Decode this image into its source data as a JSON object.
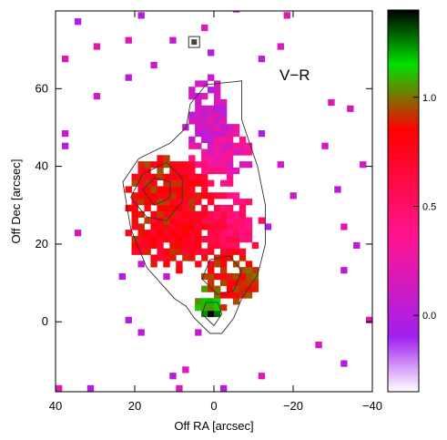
{
  "chart_data": {
    "type": "heatmap",
    "title": "",
    "panel_label": "V−R",
    "xlabel": "Off RA [arcsec]",
    "ylabel": "Off Dec [arcsec]",
    "xlim": [
      40,
      -40
    ],
    "ylim": [
      -18,
      80
    ],
    "xticks": [
      {
        "value": 40,
        "label": "40"
      },
      {
        "value": 20,
        "label": "20"
      },
      {
        "value": 0,
        "label": "0"
      },
      {
        "value": -20,
        "label": "−20"
      },
      {
        "value": -40,
        "label": "−40"
      }
    ],
    "yticks": [
      {
        "value": 0,
        "label": "0"
      },
      {
        "value": 20,
        "label": "20"
      },
      {
        "value": 40,
        "label": "40"
      },
      {
        "value": 60,
        "label": "60"
      }
    ],
    "colorbar": {
      "range": [
        -0.35,
        1.4
      ],
      "ticks": [
        {
          "value": 0.0,
          "label": "0.0"
        },
        {
          "value": 0.5,
          "label": "0.5"
        },
        {
          "value": 1.0,
          "label": "1.0"
        }
      ],
      "stops": [
        {
          "value": -0.35,
          "color": "#ffffff"
        },
        {
          "value": -0.1,
          "color": "#a020f0"
        },
        {
          "value": 0.35,
          "color": "#ff1493"
        },
        {
          "value": 0.85,
          "color": "#ff0000"
        },
        {
          "value": 1.15,
          "color": "#00e000"
        },
        {
          "value": 1.4,
          "color": "#000000"
        }
      ]
    },
    "regions": [
      {
        "x": 12,
        "y": 32,
        "rx": 11,
        "ry": 10,
        "value": 0.85
      },
      {
        "x": 3,
        "y": 52,
        "rx": 5,
        "ry": 10,
        "value": 0.1
      },
      {
        "x": -2,
        "y": 42,
        "rx": 7,
        "ry": 8,
        "value": 0.25
      },
      {
        "x": 10,
        "y": 22,
        "rx": 12,
        "ry": 9,
        "value": 0.8
      },
      {
        "x": -3,
        "y": 24,
        "rx": 8,
        "ry": 8,
        "value": 0.45
      },
      {
        "x": -3,
        "y": 10,
        "rx": 7,
        "ry": 8,
        "value": 0.9
      },
      {
        "x": 2,
        "y": 4,
        "rx": 3,
        "ry": 3,
        "value": 1.15
      },
      {
        "x": 1,
        "y": 1,
        "rx": 2,
        "ry": 2,
        "value": 1.4
      }
    ],
    "contours": [
      {
        "level": 1,
        "points": [
          [
            6,
            56
          ],
          [
            2,
            61
          ],
          [
            -7,
            62
          ],
          [
            -7,
            52
          ],
          [
            -11,
            40
          ],
          [
            -13,
            30
          ],
          [
            -13,
            20
          ],
          [
            -11,
            12
          ],
          [
            -7,
            6
          ],
          [
            -5,
            1
          ],
          [
            -2,
            -3
          ],
          [
            1,
            -3
          ],
          [
            5,
            1
          ],
          [
            7,
            4
          ],
          [
            10,
            6
          ],
          [
            17,
            14
          ],
          [
            21,
            24
          ],
          [
            23,
            36
          ],
          [
            19,
            42
          ],
          [
            11,
            46
          ],
          [
            7,
            50
          ]
        ]
      },
      {
        "level": 2,
        "points": [
          [
            17,
            27
          ],
          [
            21,
            32
          ],
          [
            18,
            38
          ],
          [
            12,
            41
          ],
          [
            8,
            37
          ],
          [
            8,
            31
          ],
          [
            12,
            26
          ]
        ]
      },
      {
        "level": 3,
        "points": [
          [
            15,
            30
          ],
          [
            18,
            34
          ],
          [
            15,
            37
          ],
          [
            11,
            36
          ],
          [
            11,
            32
          ]
        ]
      },
      {
        "level": 4,
        "points": [
          [
            -1,
            7
          ],
          [
            3,
            11
          ],
          [
            1,
            16
          ],
          [
            -4,
            17
          ],
          [
            -7,
            13
          ],
          [
            -5,
            8
          ]
        ]
      },
      {
        "level": 5,
        "points": [
          [
            0,
            -1
          ],
          [
            3,
            2
          ],
          [
            2,
            5
          ],
          [
            -1,
            5
          ],
          [
            -2,
            2
          ]
        ]
      }
    ],
    "marker": {
      "x": 5,
      "y": 72
    }
  }
}
